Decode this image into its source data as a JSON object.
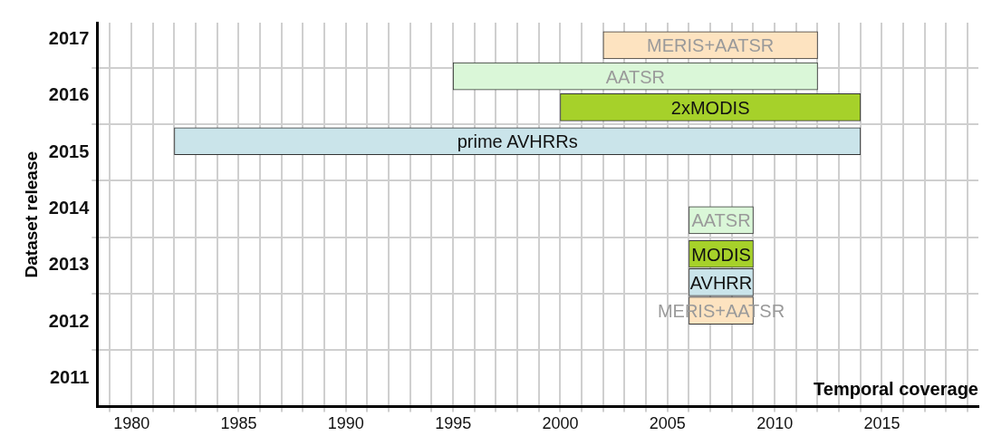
{
  "chart_data": {
    "type": "bar",
    "orientation": "horizontal",
    "xlabel": "Temporal coverage",
    "ylabel": "Dataset release",
    "grid": true,
    "xlim": [
      1978.4,
      2019.5
    ],
    "xticks": [
      {
        "value": 1979,
        "label": null
      },
      1980,
      {
        "value": 1981,
        "label": null
      },
      {
        "value": 1982,
        "label": null
      },
      {
        "value": 1983,
        "label": null
      },
      {
        "value": 1984,
        "label": null
      },
      1985,
      {
        "value": 1986,
        "label": null
      },
      {
        "value": 1987,
        "label": null
      },
      {
        "value": 1988,
        "label": null
      },
      {
        "value": 1989,
        "label": null
      },
      1990,
      {
        "value": 1991,
        "label": null
      },
      {
        "value": 1992,
        "label": null
      },
      {
        "value": 1993,
        "label": null
      },
      {
        "value": 1994,
        "label": null
      },
      1995,
      {
        "value": 1996,
        "label": null
      },
      {
        "value": 1997,
        "label": null
      },
      {
        "value": 1998,
        "label": null
      },
      {
        "value": 1999,
        "label": null
      },
      2000,
      {
        "value": 2001,
        "label": null
      },
      {
        "value": 2002,
        "label": null
      },
      {
        "value": 2003,
        "label": null
      },
      {
        "value": 2004,
        "label": null
      },
      2005,
      {
        "value": 2006,
        "label": null
      },
      {
        "value": 2007,
        "label": null
      },
      {
        "value": 2008,
        "label": null
      },
      {
        "value": 2009,
        "label": null
      },
      2010,
      {
        "value": 2011,
        "label": null
      },
      {
        "value": 2012,
        "label": null
      },
      {
        "value": 2013,
        "label": null
      },
      {
        "value": 2014,
        "label": null
      },
      2015,
      {
        "value": 2016,
        "label": null
      },
      {
        "value": 2017,
        "label": null
      },
      {
        "value": 2018,
        "label": null
      },
      {
        "value": 2019,
        "label": null
      }
    ],
    "ylim": [
      2010.5,
      2017.3
    ],
    "yticks": [
      2011,
      {
        "value": 2011.5,
        "label": null
      },
      2012,
      {
        "value": 2012.5,
        "label": null
      },
      2013,
      {
        "value": 2013.5,
        "label": null
      },
      2014,
      {
        "value": 2014.5,
        "label": null
      },
      2015,
      {
        "value": 2015.5,
        "label": null
      },
      2016,
      {
        "value": 2016.5,
        "label": null
      },
      2017
    ],
    "series": [
      {
        "name": "MERIS+AATSR",
        "color": "#fde3c0",
        "x": [
          2016.9
        ],
        "base": [
          2002
        ],
        "values": [
          10
        ]
      },
      {
        "name": "AATSR",
        "color": "#daf7d8",
        "x": [
          2016.35
        ],
        "base": [
          1995
        ],
        "values": [
          17
        ]
      },
      {
        "name": "2xMODIS",
        "color": "#a6d12a",
        "x": [
          2015.8
        ],
        "base": [
          2000
        ],
        "values": [
          14
        ]
      },
      {
        "name": "prime AVHRRs",
        "color": "#cae4ea",
        "x": [
          2015.2
        ],
        "base": [
          1982
        ],
        "values": [
          32
        ]
      },
      {
        "name": "AATSR",
        "color": "#daf7d8",
        "x": [
          2013.8
        ],
        "base": [
          2006
        ],
        "values": [
          3
        ]
      },
      {
        "name": "MODIS",
        "color": "#a6d12a",
        "x": [
          2013.2
        ],
        "base": [
          2006
        ],
        "values": [
          3
        ]
      },
      {
        "name": "AVHRR",
        "color": "#cae4ea",
        "x": [
          2012.7
        ],
        "base": [
          2006
        ],
        "values": [
          3
        ]
      },
      {
        "name": "MERIS+AATSR",
        "color": "#fde3c0",
        "x": [
          2012.2
        ],
        "base": [
          2006
        ],
        "values": [
          3
        ]
      }
    ]
  }
}
